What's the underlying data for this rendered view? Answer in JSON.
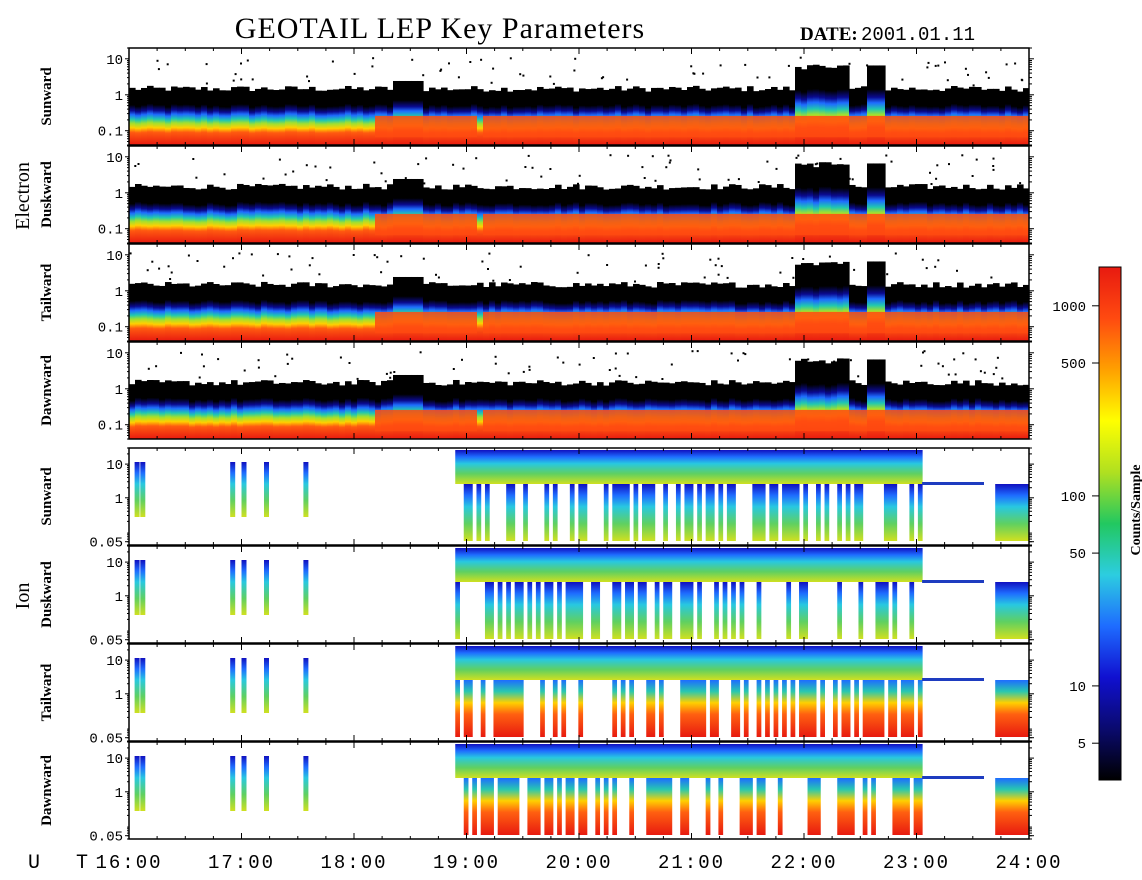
{
  "header": {
    "title": "GEOTAIL LEP Key Parameters",
    "date_label": "DATE:",
    "date_value": "2001.01.11"
  },
  "groups": {
    "electron": "Electron",
    "ion": "Ion"
  },
  "panels": [
    {
      "group": "electron",
      "label": "Sunward",
      "yticks": [
        "10",
        "1",
        "0.1"
      ]
    },
    {
      "group": "electron",
      "label": "Duskward",
      "yticks": [
        "10",
        "1",
        "0.1"
      ]
    },
    {
      "group": "electron",
      "label": "Tailward",
      "yticks": [
        "10",
        "1",
        "0.1"
      ]
    },
    {
      "group": "electron",
      "label": "Dawnward",
      "yticks": [
        "10",
        "1",
        "0.1"
      ]
    },
    {
      "group": "ion",
      "label": "Sunward",
      "yticks": [
        "10",
        "1",
        "0.05"
      ]
    },
    {
      "group": "ion",
      "label": "Duskward",
      "yticks": [
        "10",
        "1",
        "0.05"
      ]
    },
    {
      "group": "ion",
      "label": "Tailward",
      "yticks": [
        "10",
        "1",
        "0.05"
      ]
    },
    {
      "group": "ion",
      "label": "Dawnward",
      "yticks": [
        "10",
        "1",
        "0.05"
      ]
    }
  ],
  "xaxis": {
    "label": "U T",
    "ticks": [
      "16:00",
      "17:00",
      "18:00",
      "19:00",
      "20:00",
      "21:00",
      "22:00",
      "23:00",
      "24:00"
    ]
  },
  "colorbar": {
    "label": "Counts/Sample",
    "ticks": [
      "1000",
      "500",
      "100",
      "50",
      "10",
      "5"
    ],
    "colors": [
      "#000000",
      "#0a0a6e",
      "#1010d0",
      "#1e6cff",
      "#2ccde0",
      "#22c860",
      "#b0e020",
      "#ffff00",
      "#ffa000",
      "#ff4a10",
      "#e81a10"
    ]
  },
  "chart_data": {
    "type": "heatmap",
    "title": "GEOTAIL LEP Key Parameters",
    "date": "2001.01.11",
    "xlabel": "U T",
    "x_range": [
      "16:00",
      "24:00"
    ],
    "z_label": "Counts/Sample",
    "z_scale": "log",
    "z_ticks": [
      5,
      10,
      50,
      100,
      500,
      1000
    ],
    "y_scale": "log",
    "electron_y_range": [
      0.04,
      20
    ],
    "ion_y_range": [
      0.04,
      30
    ],
    "series": [
      {
        "name": "Electron Sunward"
      },
      {
        "name": "Electron Duskward"
      },
      {
        "name": "Electron Tailward"
      },
      {
        "name": "Electron Dawnward"
      },
      {
        "name": "Ion Sunward"
      },
      {
        "name": "Ion Duskward"
      },
      {
        "name": "Ion Tailward"
      },
      {
        "name": "Ion Dawnward"
      }
    ]
  }
}
